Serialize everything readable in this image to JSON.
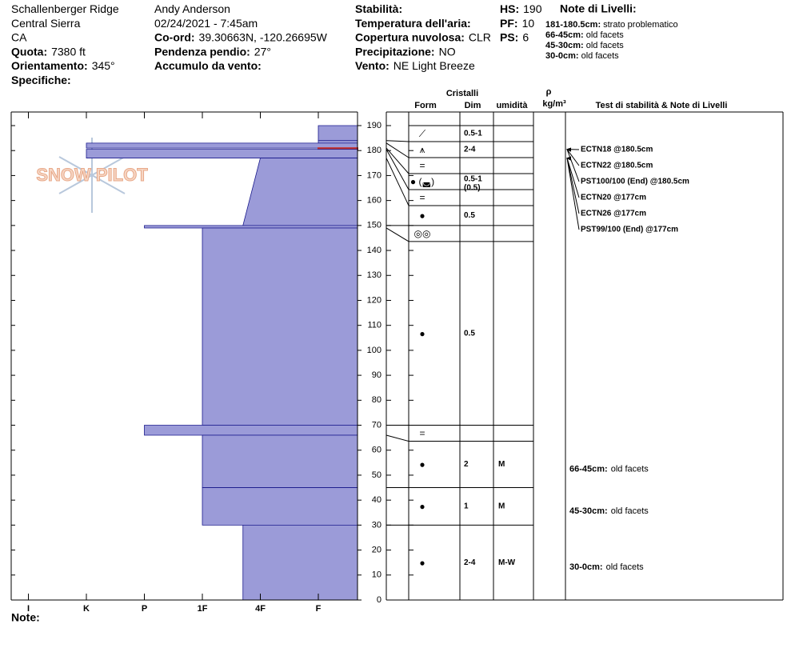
{
  "header": {
    "columns": [
      [
        {
          "value": "Schallenberger Ridge"
        },
        {
          "value": "Central Sierra"
        },
        {
          "value": "CA"
        },
        {
          "label": "Quota:",
          "value": "7380 ft"
        },
        {
          "label": "Orientamento:",
          "value": "345°"
        },
        {
          "label": "Specifiche:"
        }
      ],
      [
        {
          "value": "Andy Anderson"
        },
        {
          "value": "02/24/2021 - 7:45am"
        },
        {
          "label": "Co-ord:",
          "value": "39.30663N, -120.26695W"
        },
        {
          "label": "Pendenza pendio:",
          "value": "27°"
        },
        {
          "label": "Accumulo da vento:"
        }
      ],
      [
        {
          "label": "Stabilità:"
        },
        {
          "label": "Temperatura dell'aria:"
        },
        {
          "label": "Copertura nuvolosa:",
          "value": "CLR"
        },
        {
          "label": "Precipitazione:",
          "value": "NO"
        },
        {
          "label": "Vento:",
          "value": "NE Light Breeze"
        }
      ],
      [
        {
          "label": "HS:",
          "value": "190"
        },
        {
          "label": "PF:",
          "value": "10"
        },
        {
          "label": "PS:",
          "value": "6"
        }
      ]
    ],
    "notes": {
      "title": "Note di Livelli:",
      "items": [
        {
          "label": "181-180.5cm:",
          "value": "strato problematico"
        },
        {
          "label": "66-45cm:",
          "value": "old facets"
        },
        {
          "label": "45-30cm:",
          "value": "old facets"
        },
        {
          "label": "30-0cm:",
          "value": "old facets"
        }
      ]
    }
  },
  "columns": {
    "group": "Cristalli",
    "form": "Form",
    "size": "Dim",
    "moisture": "umidità",
    "density_symbol": "ρ",
    "density_unit": "kg/m³",
    "tests": "Test di stabilità & Note di Livelli"
  },
  "logo": "SNOW PILOT",
  "footer": "Note:",
  "height_axis": {
    "lim": [
      0,
      190
    ],
    "ticks": [
      0,
      10,
      20,
      30,
      40,
      50,
      60,
      70,
      80,
      90,
      100,
      110,
      120,
      130,
      140,
      150,
      160,
      170,
      180,
      190
    ]
  },
  "hardness_axis": {
    "ticks": [
      {
        "value": 6,
        "label": "I"
      },
      {
        "value": 5,
        "label": "K"
      },
      {
        "value": 4,
        "label": "P"
      },
      {
        "value": 3,
        "label": "1F"
      },
      {
        "value": 2,
        "label": "4F"
      },
      {
        "value": 1,
        "label": "F"
      }
    ]
  },
  "layers": [
    {
      "top": 190,
      "bottom": 184,
      "hardness": 1,
      "form": "⟋",
      "size": "0.5-1"
    },
    {
      "top": 184,
      "bottom": 183,
      "hardness": 1,
      "form": "⩚",
      "size": "2-4"
    },
    {
      "top": 183,
      "bottom": 181,
      "hardness": 5,
      "form": "="
    },
    {
      "top": 181,
      "bottom": 180.5,
      "hardness": 1,
      "problematic": true,
      "form": "● (◛)",
      "size": "0.5-1",
      "size2": "(0.5)"
    },
    {
      "top": 180.5,
      "bottom": 177,
      "hardness": 5,
      "form": "="
    },
    {
      "top": 177,
      "bottom": 150,
      "hardness": 2,
      "hardness_bottom": 2.3,
      "form": "●",
      "size": "0.5"
    },
    {
      "top": 150,
      "bottom": 149,
      "hardness": 4,
      "form": "◎◎"
    },
    {
      "top": 149,
      "bottom": 70,
      "hardness": 3,
      "form": "●",
      "size": "0.5"
    },
    {
      "top": 70,
      "bottom": 66,
      "hardness": 4,
      "form": "="
    },
    {
      "top": 66,
      "bottom": 45,
      "hardness": 3,
      "form": "●",
      "size": "2",
      "moisture": "M",
      "comment": {
        "label": "66-45cm:",
        "value": "old facets"
      }
    },
    {
      "top": 45,
      "bottom": 30,
      "hardness": 3,
      "form": "●",
      "size": "1",
      "moisture": "M",
      "comment": {
        "label": "45-30cm:",
        "value": "old facets"
      }
    },
    {
      "top": 30,
      "bottom": 0,
      "hardness": 2.3,
      "form": "●",
      "size": "2-4",
      "moisture": "M-W",
      "comment": {
        "label": "30-0cm:",
        "value": "old facets"
      }
    }
  ],
  "tests": [
    {
      "label": "ECTN18 @180.5cm",
      "height": 180.5
    },
    {
      "label": "ECTN22 @180.5cm",
      "height": 180.5
    },
    {
      "label": "PST100/100 (End) @180.5cm",
      "height": 180.5
    },
    {
      "label": "ECTN20 @177cm",
      "height": 177
    },
    {
      "label": "ECTN26 @177cm",
      "height": 177
    },
    {
      "label": "PST99/100 (End) @177cm",
      "height": 177
    }
  ]
}
